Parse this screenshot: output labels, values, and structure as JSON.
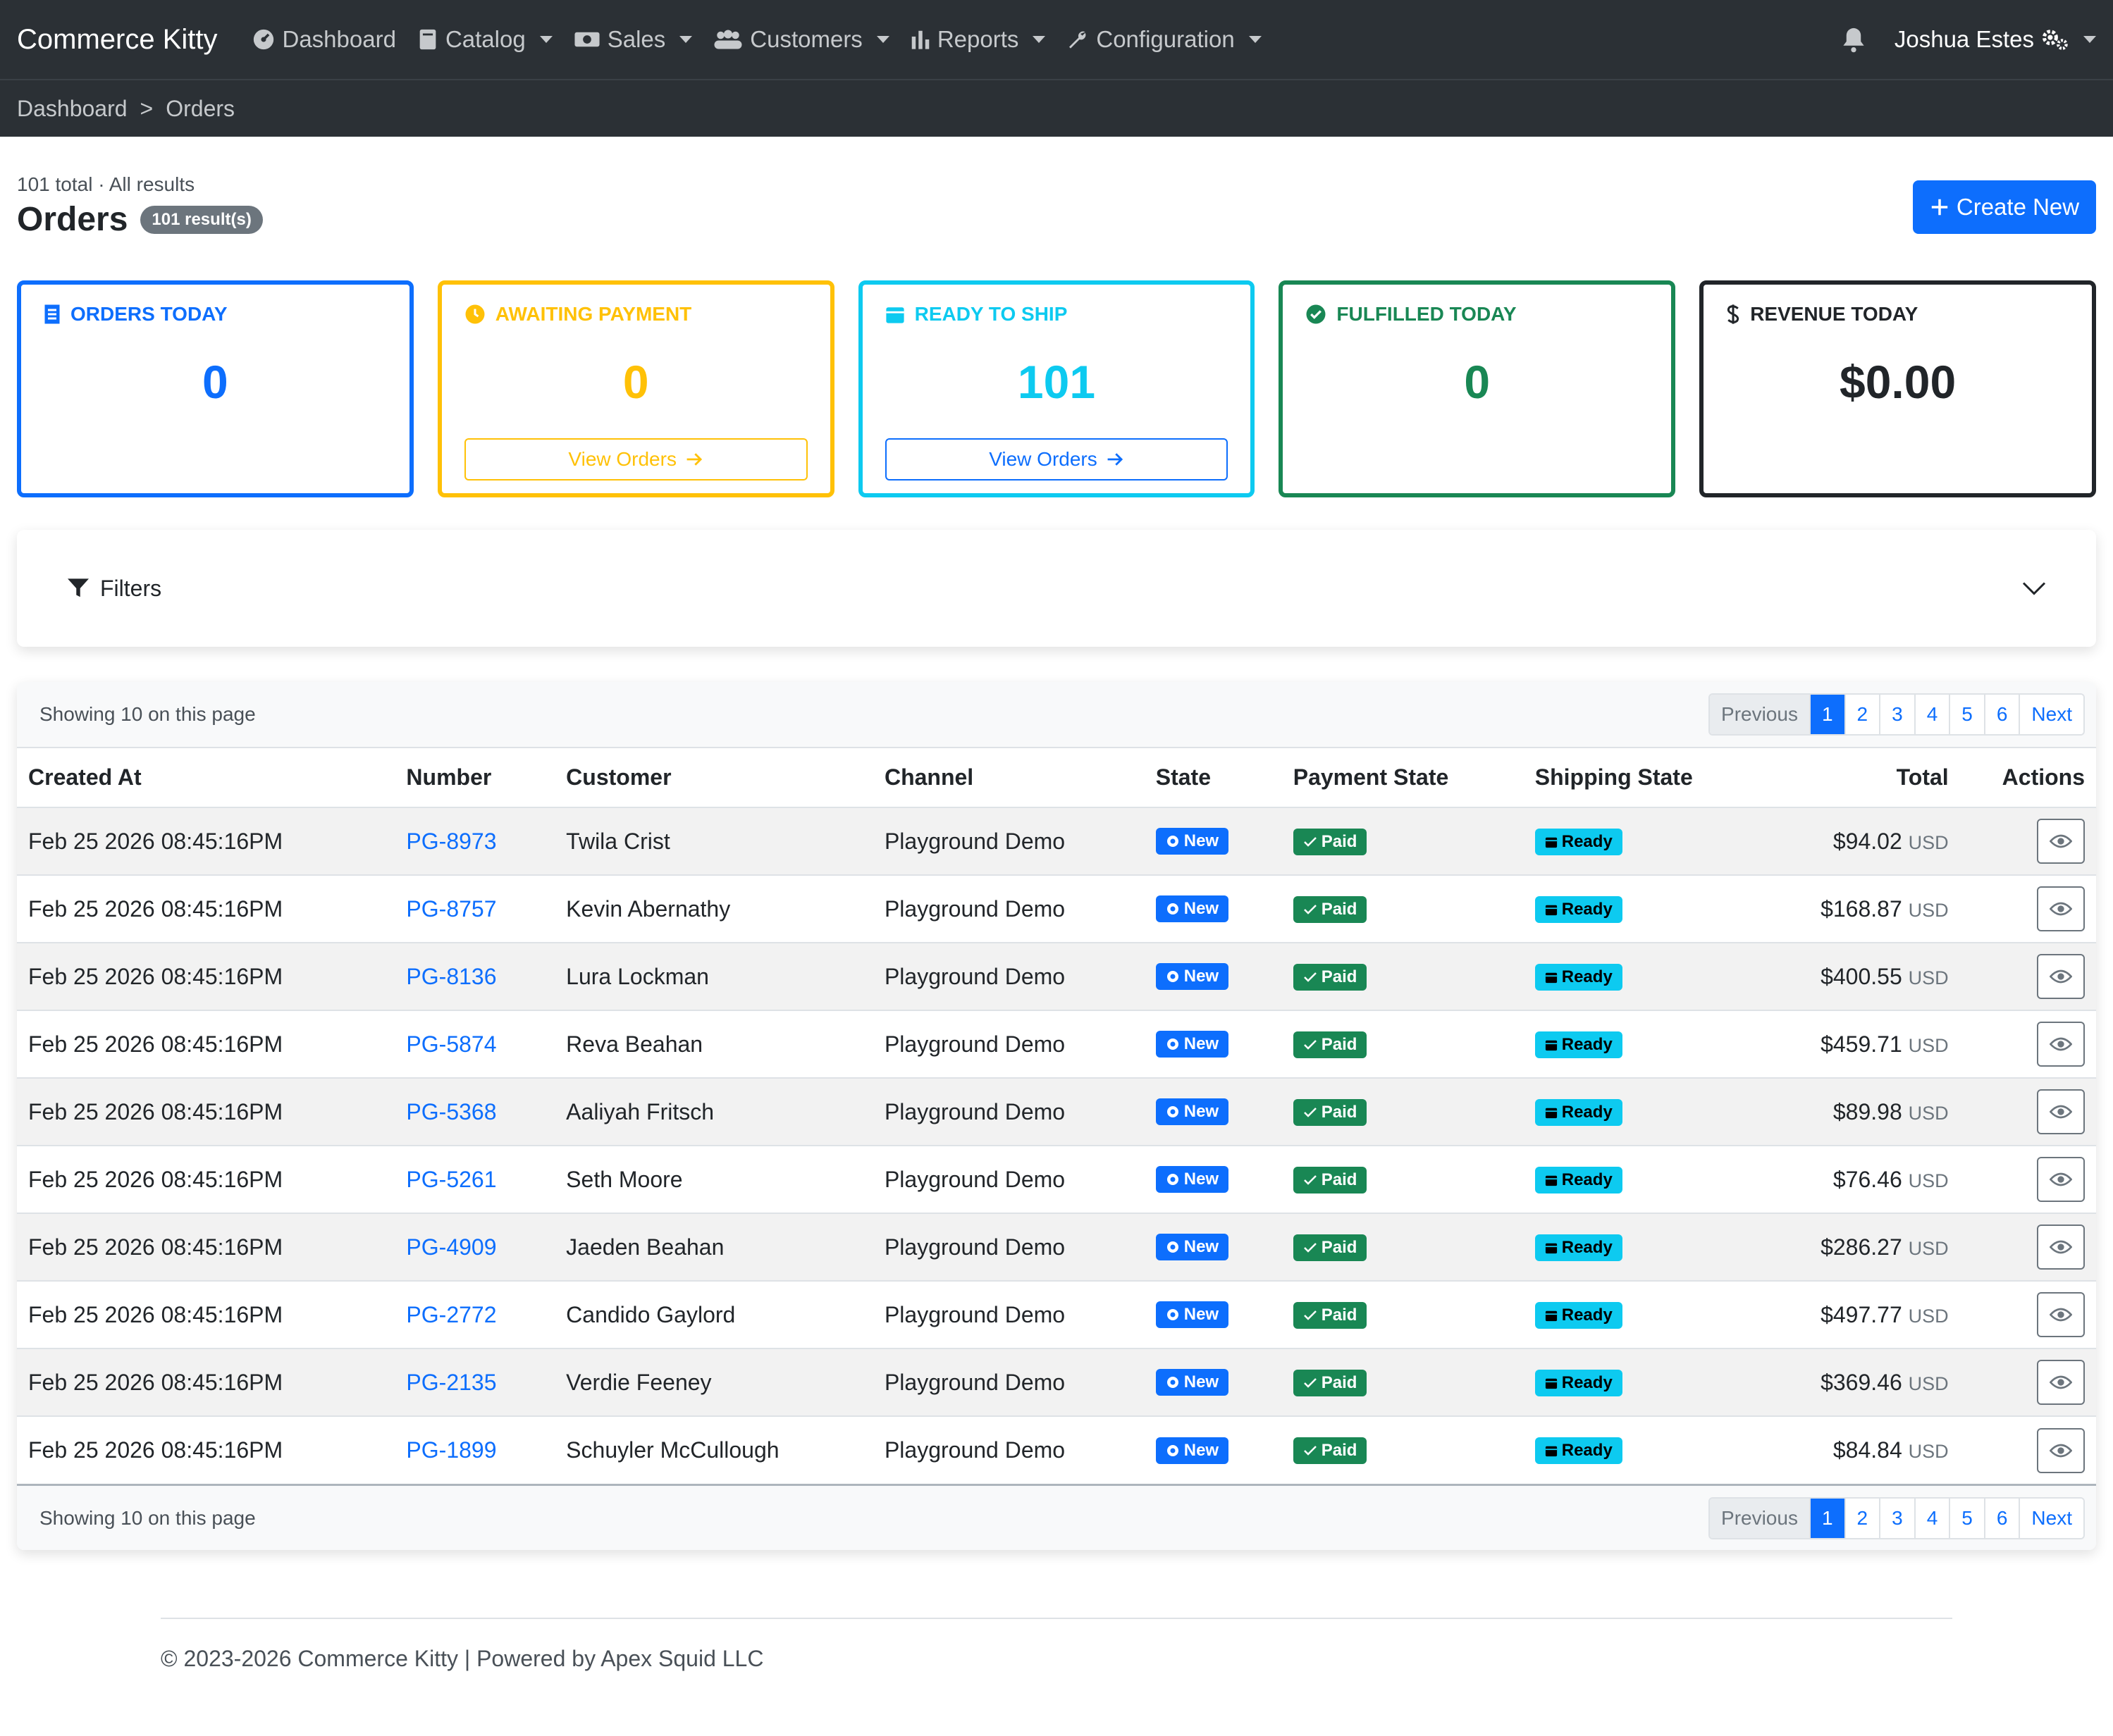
{
  "brand": "Commerce Kitty",
  "nav": {
    "dashboard": "Dashboard",
    "catalog": "Catalog",
    "sales": "Sales",
    "customers": "Customers",
    "reports": "Reports",
    "configuration": "Configuration"
  },
  "user": {
    "name": "Joshua Estes"
  },
  "breadcrumb": {
    "home": "Dashboard",
    "sep": ">",
    "current": "Orders"
  },
  "page": {
    "subtitle": "101 total · All results",
    "title": "Orders",
    "count_badge": "101 result(s)",
    "create_label": "Create New"
  },
  "cards": {
    "orders_today": {
      "label": "ORDERS TODAY",
      "value": "0",
      "color": "#0d6efd"
    },
    "awaiting_payment": {
      "label": "AWAITING PAYMENT",
      "value": "0",
      "button": "View Orders",
      "color": "#ffc107"
    },
    "ready_to_ship": {
      "label": "READY TO SHIP",
      "value": "101",
      "button": "View Orders",
      "color": "#0dcaf0"
    },
    "fulfilled_today": {
      "label": "FULFILLED TODAY",
      "value": "0",
      "color": "#198754"
    },
    "revenue_today": {
      "label": "REVENUE TODAY",
      "value": "$0.00",
      "color": "#212529"
    }
  },
  "filters": {
    "label": "Filters"
  },
  "table": {
    "showing_text": "Showing 10 on this page",
    "pagination": {
      "previous": "Previous",
      "pages": [
        "1",
        "2",
        "3",
        "4",
        "5",
        "6"
      ],
      "next": "Next"
    },
    "columns": [
      "Created At",
      "Number",
      "Customer",
      "Channel",
      "State",
      "Payment State",
      "Shipping State",
      "Total",
      "Actions"
    ],
    "rows": [
      {
        "created": "Feb 25 2026 08:45:16PM",
        "number": "PG-8973",
        "customer": "Twila Crist",
        "channel": "Playground Demo",
        "state": "New",
        "payment": "Paid",
        "shipping": "Ready",
        "total": "$94.02",
        "currency": "USD"
      },
      {
        "created": "Feb 25 2026 08:45:16PM",
        "number": "PG-8757",
        "customer": "Kevin Abernathy",
        "channel": "Playground Demo",
        "state": "New",
        "payment": "Paid",
        "shipping": "Ready",
        "total": "$168.87",
        "currency": "USD"
      },
      {
        "created": "Feb 25 2026 08:45:16PM",
        "number": "PG-8136",
        "customer": "Lura Lockman",
        "channel": "Playground Demo",
        "state": "New",
        "payment": "Paid",
        "shipping": "Ready",
        "total": "$400.55",
        "currency": "USD"
      },
      {
        "created": "Feb 25 2026 08:45:16PM",
        "number": "PG-5874",
        "customer": "Reva Beahan",
        "channel": "Playground Demo",
        "state": "New",
        "payment": "Paid",
        "shipping": "Ready",
        "total": "$459.71",
        "currency": "USD"
      },
      {
        "created": "Feb 25 2026 08:45:16PM",
        "number": "PG-5368",
        "customer": "Aaliyah Fritsch",
        "channel": "Playground Demo",
        "state": "New",
        "payment": "Paid",
        "shipping": "Ready",
        "total": "$89.98",
        "currency": "USD"
      },
      {
        "created": "Feb 25 2026 08:45:16PM",
        "number": "PG-5261",
        "customer": "Seth Moore",
        "channel": "Playground Demo",
        "state": "New",
        "payment": "Paid",
        "shipping": "Ready",
        "total": "$76.46",
        "currency": "USD"
      },
      {
        "created": "Feb 25 2026 08:45:16PM",
        "number": "PG-4909",
        "customer": "Jaeden Beahan",
        "channel": "Playground Demo",
        "state": "New",
        "payment": "Paid",
        "shipping": "Ready",
        "total": "$286.27",
        "currency": "USD"
      },
      {
        "created": "Feb 25 2026 08:45:16PM",
        "number": "PG-2772",
        "customer": "Candido Gaylord",
        "channel": "Playground Demo",
        "state": "New",
        "payment": "Paid",
        "shipping": "Ready",
        "total": "$497.77",
        "currency": "USD"
      },
      {
        "created": "Feb 25 2026 08:45:16PM",
        "number": "PG-2135",
        "customer": "Verdie Feeney",
        "channel": "Playground Demo",
        "state": "New",
        "payment": "Paid",
        "shipping": "Ready",
        "total": "$369.46",
        "currency": "USD"
      },
      {
        "created": "Feb 25 2026 08:45:16PM",
        "number": "PG-1899",
        "customer": "Schuyler McCullough",
        "channel": "Playground Demo",
        "state": "New",
        "payment": "Paid",
        "shipping": "Ready",
        "total": "$84.84",
        "currency": "USD"
      }
    ]
  },
  "footer": {
    "text": "© 2023-2026 Commerce Kitty | Powered by Apex Squid LLC"
  }
}
